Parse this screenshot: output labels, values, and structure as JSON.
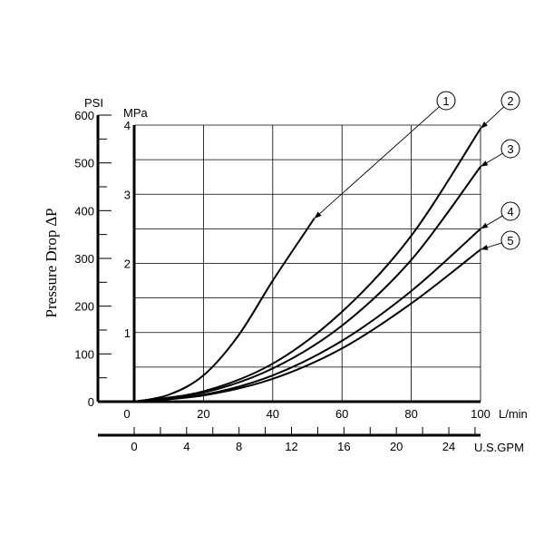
{
  "chart_data": {
    "type": "line",
    "title": "",
    "ylabel": "Pressure Drop ∆P",
    "x_unit_primary": "L/min",
    "x_unit_secondary": "U.S.GPM",
    "y_unit_psi": "PSI",
    "y_unit_mpa": "MPa",
    "xlim": [
      0,
      100
    ],
    "ylim_mpa": [
      0,
      4
    ],
    "ylim_psi": [
      0,
      600
    ],
    "grid": true,
    "x_ticks": [
      "0",
      "20",
      "40",
      "60",
      "80",
      "100"
    ],
    "gpm_ticks": [
      "0",
      "4",
      "8",
      "12",
      "16",
      "20",
      "24"
    ],
    "psi_ticks": [
      "0",
      "100",
      "200",
      "300",
      "400",
      "500",
      "600"
    ],
    "mpa_ticks": [
      "1",
      "2",
      "3",
      "4"
    ],
    "series": [
      {
        "name": "1",
        "x": [
          0,
          10,
          20,
          30,
          40,
          50,
          52
        ],
        "y": [
          0,
          0.1,
          0.38,
          0.95,
          1.75,
          2.5,
          2.65
        ]
      },
      {
        "name": "2",
        "x": [
          0,
          20,
          40,
          60,
          80,
          100
        ],
        "y": [
          0,
          0.15,
          0.55,
          1.3,
          2.4,
          3.95
        ]
      },
      {
        "name": "3",
        "x": [
          0,
          20,
          40,
          60,
          80,
          100
        ],
        "y": [
          0,
          0.13,
          0.48,
          1.1,
          2.05,
          3.4
        ]
      },
      {
        "name": "4",
        "x": [
          0,
          20,
          40,
          60,
          80,
          100
        ],
        "y": [
          0,
          0.1,
          0.38,
          0.88,
          1.6,
          2.5
        ]
      },
      {
        "name": "5",
        "x": [
          0,
          20,
          40,
          60,
          80,
          100
        ],
        "y": [
          0,
          0.09,
          0.33,
          0.77,
          1.42,
          2.2
        ]
      }
    ]
  }
}
